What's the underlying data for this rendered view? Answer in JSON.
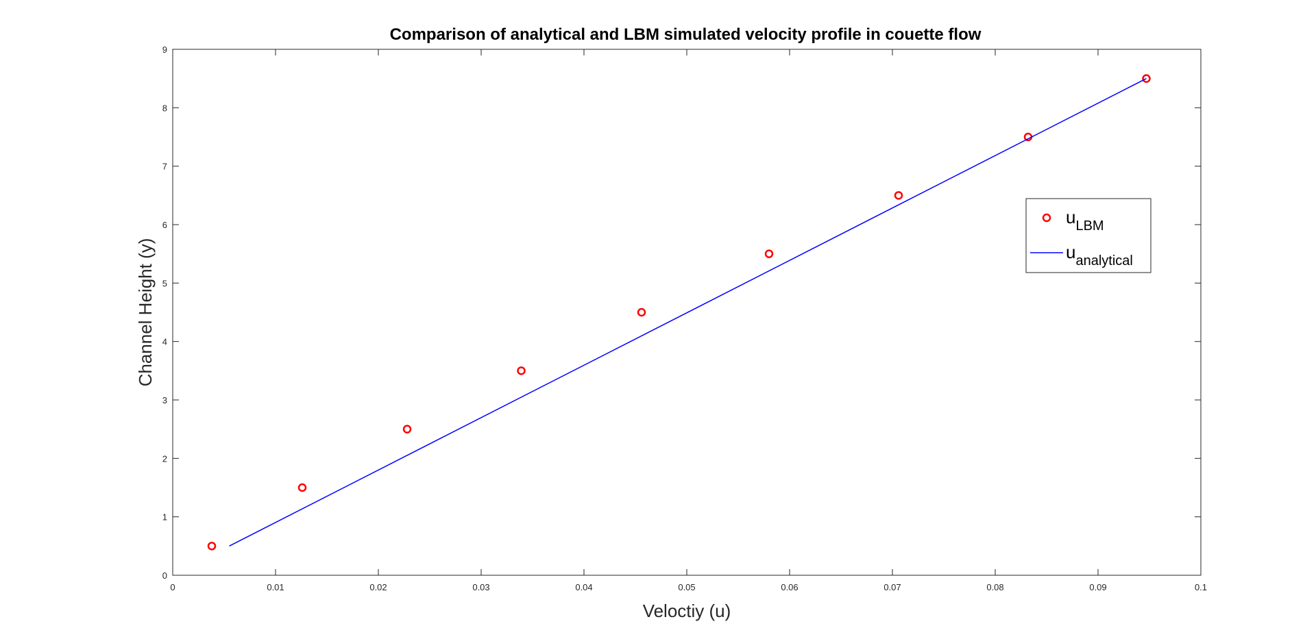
{
  "chart_data": {
    "type": "line",
    "title": "Comparison of analytical and LBM simulated velocity profile in couette flow",
    "xlabel": "Veloctiy (u)",
    "ylabel": "Channel Height (y)",
    "xlim": [
      0,
      0.1
    ],
    "ylim": [
      0,
      9
    ],
    "xticks": [
      "0",
      "0.01",
      "0.02",
      "0.03",
      "0.04",
      "0.05",
      "0.06",
      "0.07",
      "0.08",
      "0.09",
      "0.1"
    ],
    "yticks": [
      "0",
      "1",
      "2",
      "3",
      "4",
      "5",
      "6",
      "7",
      "8",
      "9"
    ],
    "grid": false,
    "legend_position": "right",
    "series": [
      {
        "base": "u",
        "sub": "LBM",
        "style": "markers",
        "color": "#ff0000",
        "x": [
          0.0038,
          0.0126,
          0.0228,
          0.0339,
          0.0456,
          0.058,
          0.0706,
          0.0832,
          0.0947
        ],
        "y": [
          0.5,
          1.5,
          2.5,
          3.5,
          4.5,
          5.5,
          6.5,
          7.5,
          8.5
        ]
      },
      {
        "base": "u",
        "sub": "analytical",
        "style": "line",
        "color": "#0000ff",
        "x": [
          0.0055,
          0.0947
        ],
        "y": [
          0.5,
          8.5
        ]
      }
    ]
  }
}
